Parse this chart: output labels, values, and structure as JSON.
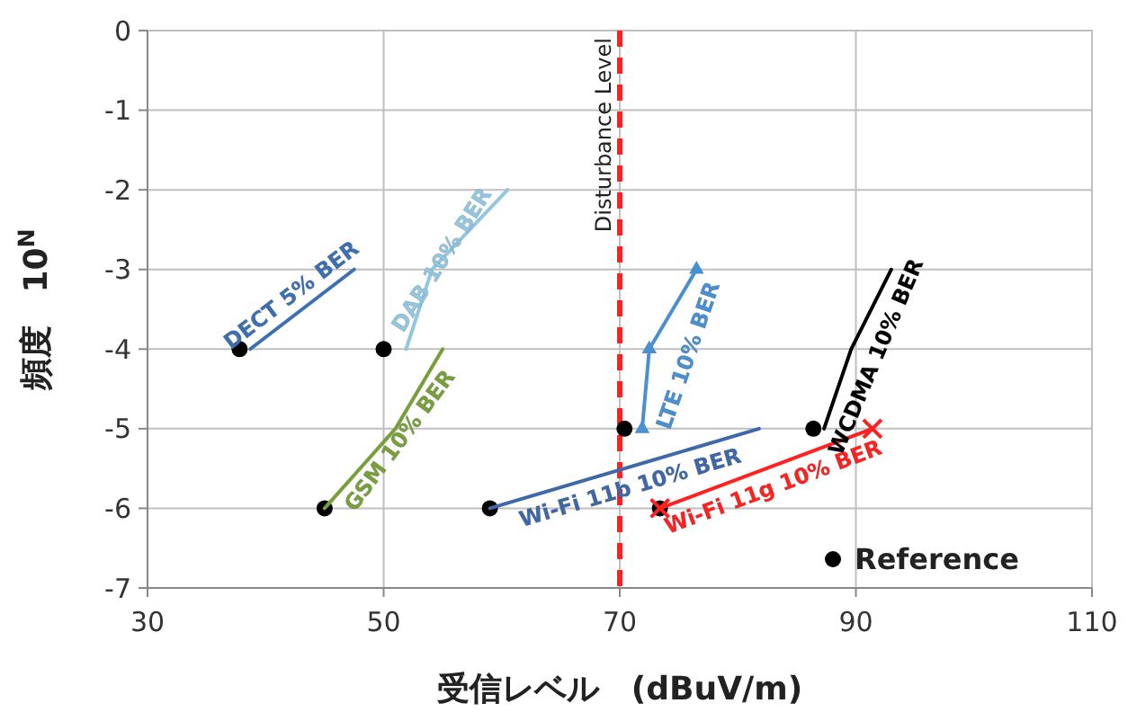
{
  "chart_data": {
    "type": "line",
    "xlabel": "受信レベル　(dBuV/m)",
    "ylabel": "頻度　10$^{N}$",
    "xlim": [
      30,
      110
    ],
    "xticks": [
      30,
      50,
      70,
      90,
      110
    ],
    "ylim": [
      -7,
      0
    ],
    "yticks": [
      -7,
      -6,
      -5,
      -4,
      -3,
      -2,
      -1,
      0
    ],
    "grid": true,
    "legend": "bottom right",
    "ref_lines": [
      {
        "axis": "x",
        "value": 70,
        "label": "Disturbance Level",
        "color": "#ff2020",
        "line_style": "dashed"
      }
    ],
    "series": [
      {
        "name": "DECT 5% BER",
        "color": "#3d6fb5",
        "x": [
          38.7,
          47.5
        ],
        "values": [
          -4,
          -3
        ]
      },
      {
        "name": "DAB 10% BER",
        "color": "#93c6e0",
        "x": [
          51.9,
          54.1,
          60.5
        ],
        "values": [
          -4,
          -3,
          -2
        ]
      },
      {
        "name": "GSM 10% BER",
        "color": "#77a03c",
        "x": [
          45,
          51,
          55
        ],
        "values": [
          -6,
          -5,
          -4
        ]
      },
      {
        "name": "Wi-Fi 11b 10% BER",
        "color": "#3e68a8",
        "x": [
          59,
          81.8
        ],
        "values": [
          -6,
          -5
        ]
      },
      {
        "name": "Wi-Fi 11g 10% BER",
        "color": "#ff2020",
        "x": [
          73.4,
          91.4
        ],
        "values": [
          -6,
          -5
        ],
        "marker": "cross"
      },
      {
        "name": "LTE 10% BER",
        "color": "#4a90d0",
        "x": [
          71.9,
          72.5,
          76.5
        ],
        "values": [
          -5,
          -4,
          -3
        ],
        "marker": "triangle"
      },
      {
        "name": "WCDMA 10% BER",
        "color": "#000000",
        "x": [
          87.3,
          89.6,
          93
        ],
        "values": [
          -5,
          -4,
          -3
        ]
      },
      {
        "name": "Reference",
        "type": "scatter",
        "color": "#000000",
        "marker": "circle",
        "x": [
          37.8,
          50,
          45,
          59,
          70.4,
          86.4,
          73.4
        ],
        "values": [
          -4,
          -4,
          -6,
          -6,
          -5,
          -5,
          -6
        ]
      }
    ]
  }
}
